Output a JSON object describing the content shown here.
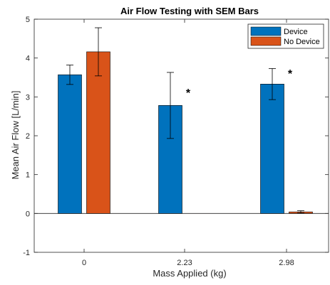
{
  "colors": {
    "device": "#0072BD",
    "no_device": "#D95319",
    "axis": "#262626",
    "errorbar": "#000000"
  },
  "chart_data": {
    "type": "bar",
    "title": "Air Flow Testing with SEM Bars",
    "xlabel": "Mass Applied (kg)",
    "ylabel": "Mean Air Flow [L/min]",
    "categories": [
      "0",
      "2.23",
      "2.98"
    ],
    "ylim": [
      -1,
      5
    ],
    "yticks": [
      "-1",
      "0",
      "1",
      "2",
      "3",
      "4",
      "5"
    ],
    "grid": false,
    "legend_position": "top-right",
    "series": [
      {
        "name": "Device",
        "values": [
          3.57,
          2.78,
          3.33
        ],
        "sem": [
          0.25,
          0.85,
          0.4
        ]
      },
      {
        "name": "No Device",
        "values": [
          4.16,
          0.0,
          0.04
        ],
        "sem": [
          0.62,
          0.0,
          0.03
        ]
      }
    ],
    "annotations": [
      {
        "text": "*",
        "category": "2.23",
        "y": 3.15
      },
      {
        "text": "*",
        "category": "2.98",
        "y": 3.65
      }
    ]
  }
}
